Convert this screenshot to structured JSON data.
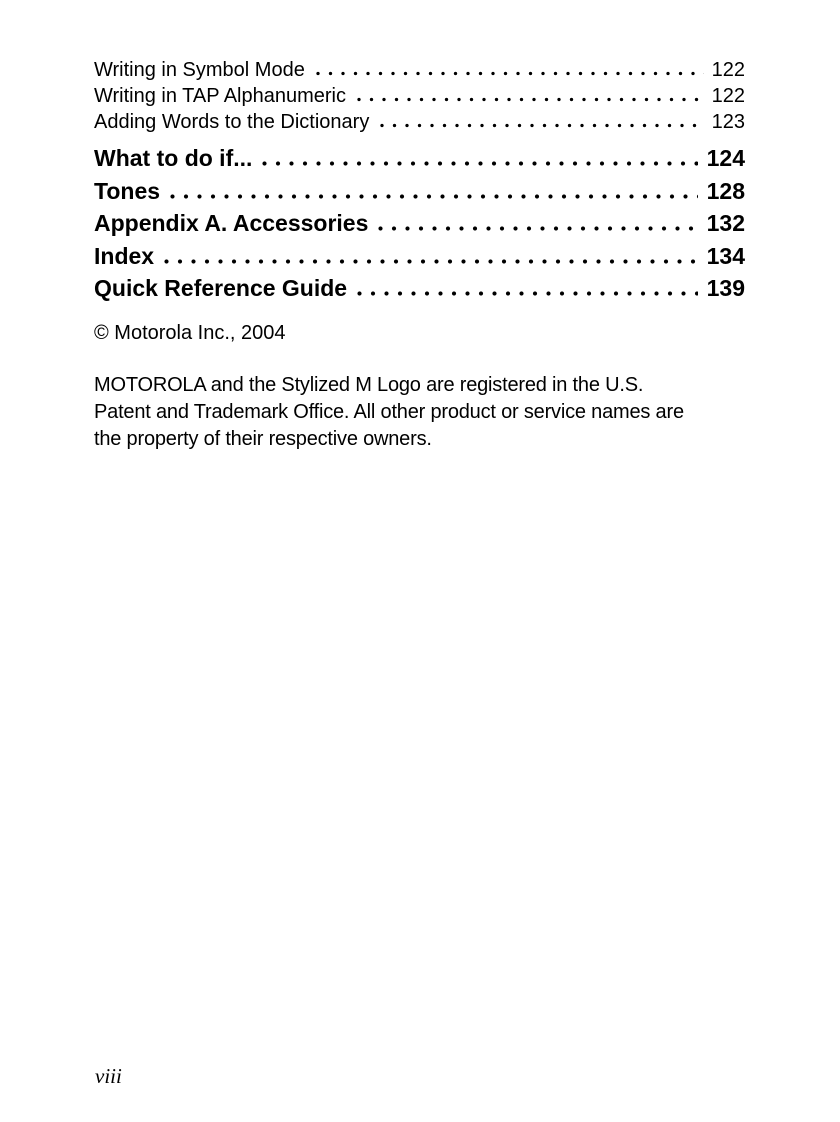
{
  "toc": {
    "entries": [
      {
        "label": "Writing in Symbol Mode",
        "page": "122",
        "style": "regular"
      },
      {
        "label": "Writing in TAP Alphanumeric",
        "page": "122",
        "style": "regular"
      },
      {
        "label": "Adding Words to the Dictionary",
        "page": "123",
        "style": "regular"
      },
      {
        "label": "What to do if...",
        "page": "124",
        "style": "bold"
      },
      {
        "label": "Tones",
        "page": "128",
        "style": "bold"
      },
      {
        "label": "Appendix A. Accessories",
        "page": "132",
        "style": "bold"
      },
      {
        "label": "Index",
        "page": "134",
        "style": "bold"
      },
      {
        "label": "Quick Reference Guide",
        "page": "139",
        "style": "bold"
      }
    ]
  },
  "copyright": "© Motorola Inc., 2004",
  "legal": {
    "lines": [
      "MOTOROLA and the Stylized M Logo are registered in the U.S.",
      "Patent and Trademark Office. All other product or service names are",
      "the property of their respective owners."
    ]
  },
  "footer": {
    "page_number": "viii"
  }
}
